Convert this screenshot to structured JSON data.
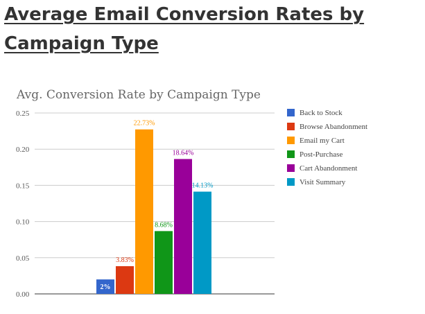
{
  "heading": "Average Email Conversion Rates by Campaign Type",
  "chart_data": {
    "type": "bar",
    "title": "Avg. Conversion Rate by Campaign Type",
    "xlabel": "",
    "ylabel": "",
    "ylim": [
      0,
      0.25
    ],
    "yticks": [
      "0.00",
      "0.05",
      "0.10",
      "0.15",
      "0.20",
      "0.25"
    ],
    "grid": true,
    "legend_position": "right",
    "series": [
      {
        "name": "Back to Stock",
        "value": 0.02,
        "label": "2%",
        "color": "#3366cc"
      },
      {
        "name": "Browse Abandonment",
        "value": 0.0383,
        "label": "3.83%",
        "color": "#dc3912"
      },
      {
        "name": "Email my Cart",
        "value": 0.2273,
        "label": "22.73%",
        "color": "#ff9900"
      },
      {
        "name": "Post-Purchase",
        "value": 0.0868,
        "label": "8.68%",
        "color": "#109618"
      },
      {
        "name": "Cart Abandonment",
        "value": 0.1864,
        "label": "18.64%",
        "color": "#990099"
      },
      {
        "name": "Visit Summary",
        "value": 0.1413,
        "label": "14.13%",
        "color": "#0099c6"
      }
    ]
  }
}
